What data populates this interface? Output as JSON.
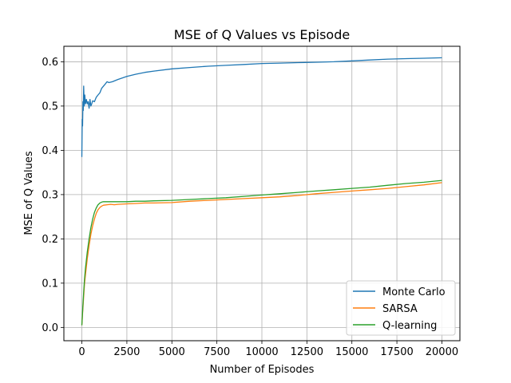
{
  "chart_data": {
    "type": "line",
    "title": "MSE of Q Values vs Episode",
    "xlabel": "Number of Episodes",
    "ylabel": "MSE of Q Values",
    "xlim": [
      -1000,
      21000
    ],
    "ylim": [
      -0.03,
      0.635
    ],
    "xticks": [
      0,
      2500,
      5000,
      7500,
      10000,
      12500,
      15000,
      17500,
      20000
    ],
    "yticks": [
      0.0,
      0.1,
      0.2,
      0.3,
      0.4,
      0.5,
      0.6
    ],
    "xtick_labels": [
      "0",
      "2500",
      "5000",
      "7500",
      "10000",
      "12500",
      "15000",
      "17500",
      "20000"
    ],
    "ytick_labels": [
      "0.0",
      "0.1",
      "0.2",
      "0.3",
      "0.4",
      "0.5",
      "0.6"
    ],
    "grid": true,
    "legend_position": "lower-right",
    "series": [
      {
        "name": "Monte Carlo",
        "color": "#1f77b4",
        "x": [
          0,
          20,
          40,
          60,
          80,
          100,
          130,
          160,
          200,
          250,
          300,
          350,
          400,
          450,
          500,
          550,
          600,
          700,
          800,
          900,
          1000,
          1100,
          1200,
          1300,
          1400,
          1500,
          1700,
          2000,
          2500,
          3000,
          3500,
          4000,
          5000,
          6000,
          7000,
          8000,
          9000,
          10000,
          11000,
          12000,
          13000,
          14000,
          15000,
          16000,
          17000,
          18000,
          19000,
          20000
        ],
        "y": [
          0.385,
          0.47,
          0.455,
          0.51,
          0.49,
          0.545,
          0.5,
          0.525,
          0.505,
          0.515,
          0.505,
          0.51,
          0.495,
          0.515,
          0.5,
          0.505,
          0.512,
          0.51,
          0.52,
          0.525,
          0.53,
          0.54,
          0.545,
          0.55,
          0.555,
          0.553,
          0.555,
          0.56,
          0.567,
          0.572,
          0.576,
          0.579,
          0.584,
          0.587,
          0.59,
          0.592,
          0.594,
          0.596,
          0.597,
          0.598,
          0.599,
          0.6,
          0.602,
          0.604,
          0.606,
          0.607,
          0.608,
          0.609
        ]
      },
      {
        "name": "SARSA",
        "color": "#ff7f0e",
        "x": [
          0,
          50,
          100,
          150,
          200,
          300,
          400,
          500,
          600,
          700,
          800,
          900,
          1000,
          1100,
          1200,
          1400,
          1600,
          1800,
          2000,
          2500,
          3000,
          3500,
          4000,
          5000,
          6000,
          7000,
          8000,
          9000,
          10000,
          11000,
          12000,
          13000,
          14000,
          15000,
          16000,
          17000,
          18000,
          19000,
          20000
        ],
        "y": [
          0.005,
          0.04,
          0.07,
          0.1,
          0.12,
          0.155,
          0.185,
          0.21,
          0.23,
          0.245,
          0.258,
          0.266,
          0.271,
          0.274,
          0.276,
          0.277,
          0.278,
          0.277,
          0.278,
          0.279,
          0.28,
          0.281,
          0.281,
          0.282,
          0.285,
          0.287,
          0.289,
          0.291,
          0.293,
          0.295,
          0.298,
          0.302,
          0.305,
          0.308,
          0.311,
          0.314,
          0.318,
          0.322,
          0.327
        ]
      },
      {
        "name": "Q-learning",
        "color": "#2ca02c",
        "x": [
          0,
          50,
          100,
          150,
          200,
          300,
          400,
          500,
          600,
          700,
          800,
          900,
          1000,
          1100,
          1200,
          1400,
          1600,
          1800,
          2000,
          2500,
          3000,
          3500,
          4000,
          5000,
          6000,
          7000,
          8000,
          9000,
          10000,
          11000,
          12000,
          13000,
          14000,
          15000,
          16000,
          17000,
          18000,
          19000,
          20000
        ],
        "y": [
          0.005,
          0.045,
          0.08,
          0.11,
          0.135,
          0.17,
          0.2,
          0.225,
          0.245,
          0.26,
          0.27,
          0.277,
          0.281,
          0.283,
          0.284,
          0.284,
          0.284,
          0.284,
          0.284,
          0.284,
          0.285,
          0.285,
          0.286,
          0.287,
          0.289,
          0.291,
          0.293,
          0.296,
          0.299,
          0.302,
          0.305,
          0.308,
          0.311,
          0.314,
          0.317,
          0.321,
          0.325,
          0.328,
          0.332
        ]
      }
    ]
  }
}
